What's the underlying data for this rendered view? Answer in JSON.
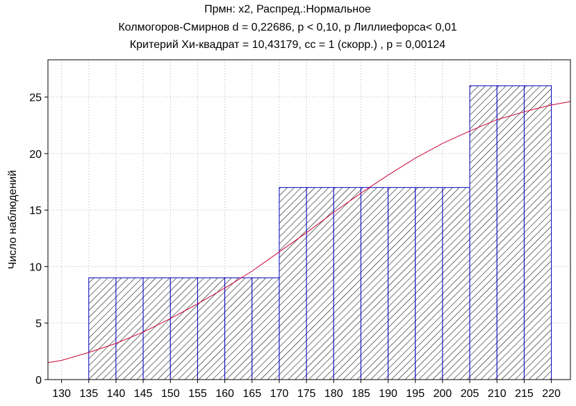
{
  "chart_data": {
    "type": "bar",
    "title_lines": [
      "Прмн: x2, Распред.:Нормальное",
      "Колмогоров-Смирнов d = 0,22686, p < 0,10, p Лиллиефорса< 0,01",
      "Критерий Хи-квадрат = 10,43179, cc = 1 (скорр.) , p = 0,00124"
    ],
    "xlabel": "",
    "ylabel": "Число наблюдений",
    "x_ticks": [
      "130",
      "135",
      "140",
      "145",
      "150",
      "155",
      "160",
      "165",
      "170",
      "175",
      "180",
      "185",
      "190",
      "195",
      "200",
      "205",
      "210",
      "215",
      "220"
    ],
    "xlim": [
      127.5,
      223.5
    ],
    "y_ticks": [
      "0",
      "5",
      "10",
      "15",
      "20",
      "25"
    ],
    "ylim": [
      0,
      28.3
    ],
    "grid": true,
    "bin_width": 5,
    "bars": [
      {
        "left": 135,
        "value": 9
      },
      {
        "left": 140,
        "value": 9
      },
      {
        "left": 145,
        "value": 9
      },
      {
        "left": 150,
        "value": 9
      },
      {
        "left": 155,
        "value": 9
      },
      {
        "left": 160,
        "value": 9
      },
      {
        "left": 165,
        "value": 9
      },
      {
        "left": 170,
        "value": 17
      },
      {
        "left": 175,
        "value": 17
      },
      {
        "left": 180,
        "value": 17
      },
      {
        "left": 185,
        "value": 17
      },
      {
        "left": 190,
        "value": 17
      },
      {
        "left": 195,
        "value": 17
      },
      {
        "left": 200,
        "value": 17
      },
      {
        "left": 205,
        "value": 26
      },
      {
        "left": 210,
        "value": 26
      },
      {
        "left": 215,
        "value": 26
      }
    ],
    "fit_curve": {
      "type": "normal-expected",
      "x": [
        127.5,
        130,
        135,
        140,
        145,
        150,
        155,
        160,
        165,
        170,
        175,
        180,
        185,
        190,
        195,
        200,
        205,
        210,
        215,
        220,
        223.5
      ],
      "y": [
        1.5,
        1.7,
        2.4,
        3.2,
        4.2,
        5.4,
        6.7,
        8.1,
        9.6,
        11.3,
        13.0,
        14.8,
        16.5,
        18.1,
        19.6,
        20.9,
        22.0,
        23.0,
        23.7,
        24.3,
        24.6
      ]
    },
    "colors": {
      "bar_edge": "#0000c0",
      "bar_hatch": "#000000",
      "curve": "#cc0033",
      "grid": "#b0b0b0",
      "axis": "#000000",
      "background": "#ffffff"
    }
  }
}
